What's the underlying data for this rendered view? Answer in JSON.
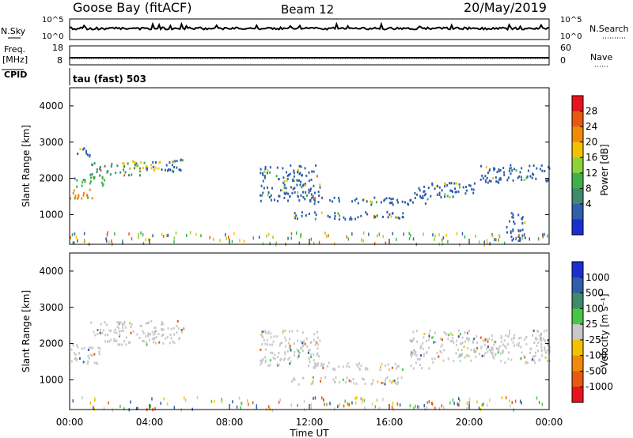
{
  "header": {
    "station": "Goose Bay (fitACF)",
    "beam": "Beam 12",
    "date": "20/May/2019"
  },
  "left_labels": {
    "nsky": "N.Sky",
    "freq_line1": "Freq.",
    "freq_line2": "[MHz]",
    "cpid": "CPID"
  },
  "right_labels": {
    "nsearch": "N.Search",
    "nave": "Nave"
  },
  "cpid_text": "tau (fast) 503",
  "noise_ticks": {
    "left_top": "10^5",
    "left_bottom": "10^0",
    "right_top": "10^5",
    "right_bottom": "10^0"
  },
  "freq_ticks": [
    "18",
    "8"
  ],
  "nave_ticks": [
    "60",
    "0"
  ],
  "x_ticks": [
    "00:00",
    "04:00",
    "08:00",
    "12:00",
    "16:00",
    "20:00",
    "00:00"
  ],
  "x_label": "Time UT",
  "y_label": "Slant Range [km]",
  "y_ticks": [
    "4000",
    "3000",
    "2000",
    "1000"
  ],
  "power_scale": {
    "label": "Power [dB]",
    "ticks": [
      "28",
      "24",
      "20",
      "16",
      "12",
      "8",
      "4"
    ],
    "colors": [
      "#e8141c",
      "#e85a12",
      "#f08a0a",
      "#f2c200",
      "#8cd23a",
      "#3fb04a",
      "#3d8a6c",
      "#2f5eaa",
      "#1a2fd0"
    ]
  },
  "velocity_scale": {
    "label": "Velocity [m s⁻¹]",
    "ticks": [
      "1000",
      "500",
      "100",
      "25",
      "-25",
      "-100",
      "-500",
      "-1000"
    ],
    "colors": [
      "#1a2fd0",
      "#2f5eaa",
      "#3d8a6c",
      "#46c646",
      "#c8c8c8",
      "#f2c200",
      "#f08a0a",
      "#e85a12",
      "#e8141c"
    ]
  },
  "chart_data": [
    {
      "type": "heatmap",
      "title": "Power",
      "xlabel": "Time UT",
      "ylabel": "Slant Range [km]",
      "xlim": [
        0,
        24
      ],
      "ylim": [
        180,
        4500
      ],
      "colorbar": "Power [dB]",
      "bands": [
        {
          "t0": 0.0,
          "t1": 1.2,
          "r0": 1450,
          "r1": 1800,
          "color": "#f08a0a"
        },
        {
          "t0": 0.2,
          "t1": 1.8,
          "r0": 1800,
          "r1": 2100,
          "color": "#3fb04a"
        },
        {
          "t0": 1.0,
          "t1": 3.5,
          "r0": 2100,
          "r1": 2450,
          "color": "#3d8a6c"
        },
        {
          "t0": 2.5,
          "t1": 4.5,
          "r0": 2250,
          "r1": 2500,
          "color": "#f2c200"
        },
        {
          "t0": 3.8,
          "t1": 5.7,
          "r0": 2200,
          "r1": 2550,
          "color": "#2f5eaa"
        },
        {
          "t0": 0.3,
          "t1": 1.0,
          "r0": 2600,
          "r1": 2900,
          "color": "#2f5eaa"
        },
        {
          "t0": 9.5,
          "t1": 12.5,
          "r0": 1400,
          "r1": 2400,
          "color": "#2f5eaa"
        },
        {
          "t0": 12.0,
          "t1": 18.0,
          "r0": 1300,
          "r1": 1500,
          "color": "#2f5eaa"
        },
        {
          "t0": 11.0,
          "t1": 17.0,
          "r0": 900,
          "r1": 1100,
          "color": "#2f5eaa"
        },
        {
          "t0": 17.0,
          "t1": 20.5,
          "r0": 1500,
          "r1": 1900,
          "color": "#2f5eaa"
        },
        {
          "t0": 20.5,
          "t1": 24.0,
          "r0": 1900,
          "r1": 2400,
          "color": "#2f5eaa"
        },
        {
          "t0": 21.8,
          "t1": 22.8,
          "r0": 300,
          "r1": 1100,
          "color": "#2f5eaa"
        }
      ]
    },
    {
      "type": "heatmap",
      "title": "Velocity",
      "xlabel": "Time UT",
      "ylabel": "Slant Range [km]",
      "xlim": [
        0,
        24
      ],
      "ylim": [
        180,
        4500
      ],
      "colorbar": "Velocity [m s⁻¹]",
      "bands": [
        {
          "t0": 0.0,
          "t1": 1.5,
          "r0": 1450,
          "r1": 2000,
          "color": "#c8c8c8"
        },
        {
          "t0": 1.0,
          "t1": 5.7,
          "r0": 2000,
          "r1": 2650,
          "color": "#c8c8c8"
        },
        {
          "t0": 9.5,
          "t1": 12.5,
          "r0": 1400,
          "r1": 2400,
          "color": "#c8c8c8"
        },
        {
          "t0": 12.0,
          "t1": 18.0,
          "r0": 1300,
          "r1": 1500,
          "color": "#c8c8c8"
        },
        {
          "t0": 11.0,
          "t1": 17.0,
          "r0": 900,
          "r1": 1100,
          "color": "#c8c8c8"
        },
        {
          "t0": 17.0,
          "t1": 24.0,
          "r0": 1500,
          "r1": 2400,
          "color": "#c8c8c8"
        }
      ]
    }
  ]
}
